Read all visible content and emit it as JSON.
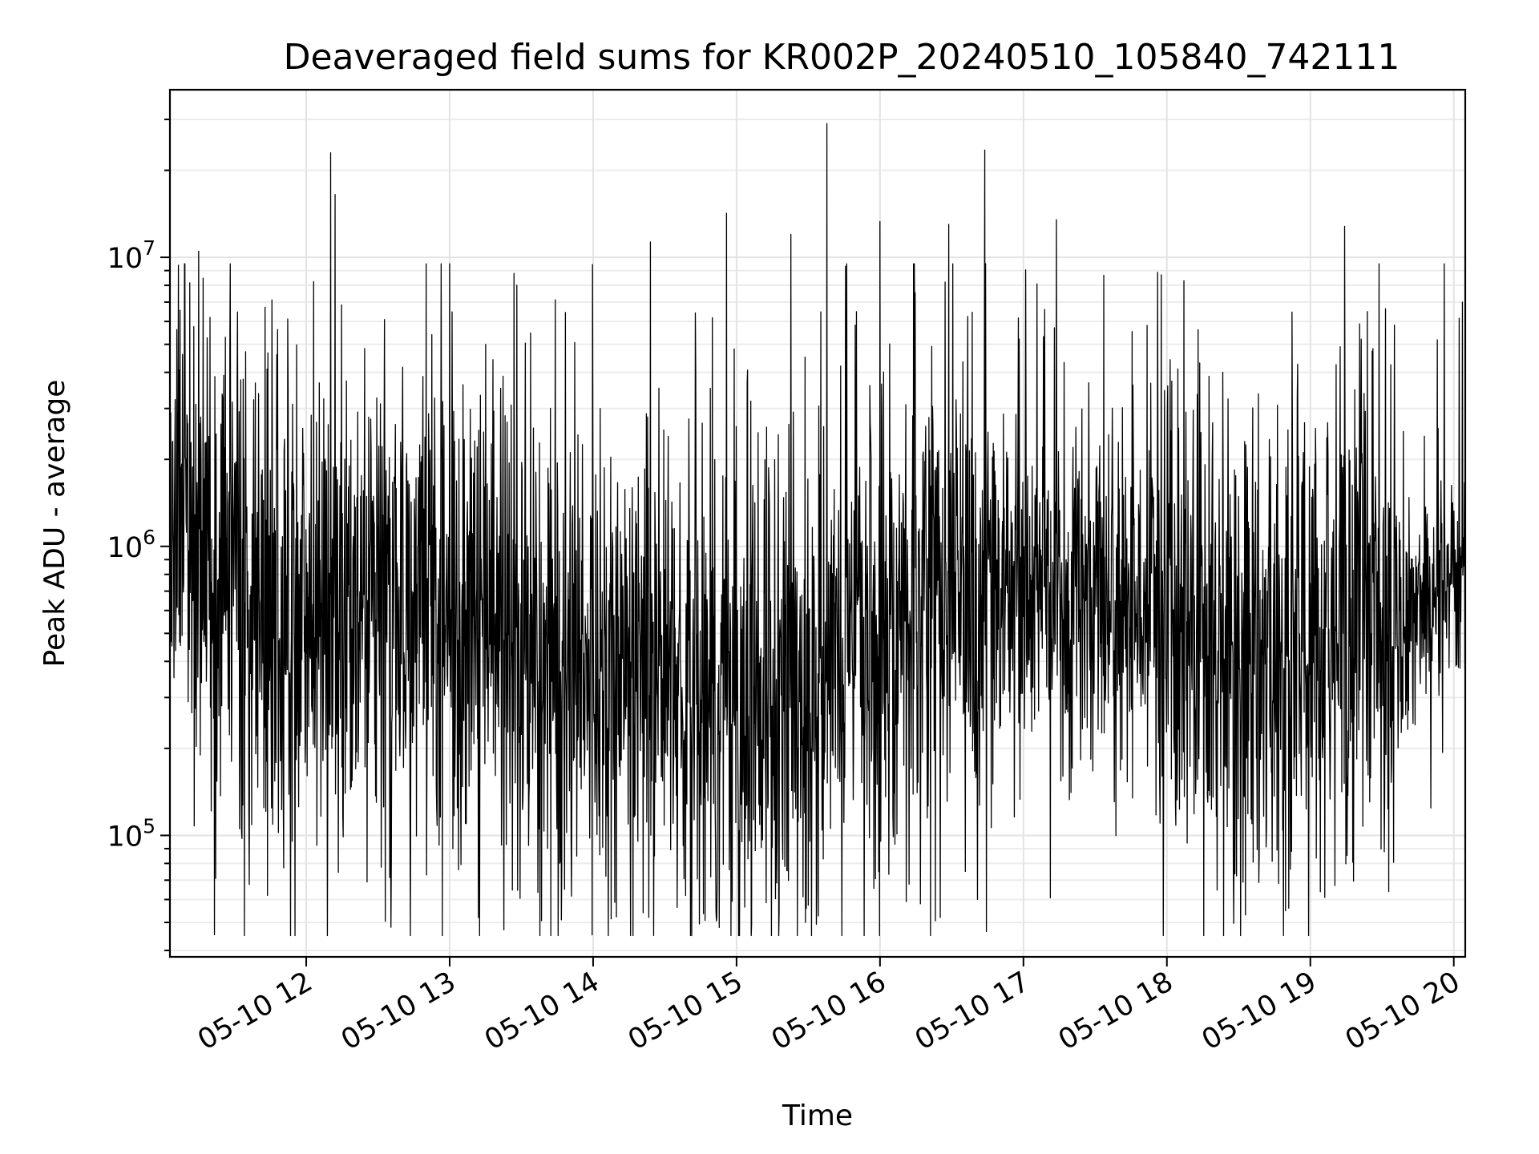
{
  "chart_data": {
    "type": "line",
    "title": "Deaveraged field sums for KR002P_20240510_105840_742111",
    "xlabel": "Time",
    "ylabel": "Peak ADU - average",
    "yscale": "log",
    "x_start": "2024-05-10 11:03",
    "x_end": "2024-05-10 20:05",
    "xlim_hours": [
      11.05,
      20.08
    ],
    "ylim": [
      38000,
      38000000
    ],
    "x_ticks": [
      {
        "hour": 12,
        "label": "05-10 12"
      },
      {
        "hour": 13,
        "label": "05-10 13"
      },
      {
        "hour": 14,
        "label": "05-10 14"
      },
      {
        "hour": 15,
        "label": "05-10 15"
      },
      {
        "hour": 16,
        "label": "05-10 16"
      },
      {
        "hour": 17,
        "label": "05-10 17"
      },
      {
        "hour": 18,
        "label": "05-10 18"
      },
      {
        "hour": 19,
        "label": "05-10 19"
      },
      {
        "hour": 20,
        "label": "05-10 20"
      }
    ],
    "y_ticks": [
      {
        "value": 100000,
        "base": "10",
        "exp": "5"
      },
      {
        "value": 1000000,
        "base": "10",
        "exp": "6"
      },
      {
        "value": 10000000,
        "base": "10",
        "exp": "7"
      }
    ],
    "grid": true,
    "line_color": "#000000",
    "series": [
      {
        "values_description_free": true,
        "typical_level_anchors": [
          {
            "hour": 11.05,
            "value": 1500000
          },
          {
            "hour": 11.5,
            "value": 700000
          },
          {
            "hour": 12.0,
            "value": 500000
          },
          {
            "hour": 12.9,
            "value": 700000
          },
          {
            "hour": 13.5,
            "value": 450000
          },
          {
            "hour": 14.5,
            "value": 330000
          },
          {
            "hour": 15.0,
            "value": 260000
          },
          {
            "hour": 16.0,
            "value": 550000
          },
          {
            "hour": 16.8,
            "value": 680000
          },
          {
            "hour": 17.6,
            "value": 700000
          },
          {
            "hour": 18.2,
            "value": 420000
          },
          {
            "hour": 18.8,
            "value": 380000
          },
          {
            "hour": 19.2,
            "value": 560000
          },
          {
            "hour": 19.7,
            "value": 600000
          },
          {
            "hour": 20.08,
            "value": 850000
          }
        ],
        "peaks": [
          {
            "hour": 11.25,
            "value": 10500000
          },
          {
            "hour": 12.17,
            "value": 23000000
          },
          {
            "hour": 12.2,
            "value": 16500000
          },
          {
            "hour": 13.25,
            "value": 5000000
          },
          {
            "hour": 13.45,
            "value": 8800000
          },
          {
            "hour": 14.4,
            "value": 11300000
          },
          {
            "hour": 14.93,
            "value": 14200000
          },
          {
            "hour": 15.38,
            "value": 12000000
          },
          {
            "hour": 15.63,
            "value": 29000000
          },
          {
            "hour": 16.0,
            "value": 13300000
          },
          {
            "hour": 16.48,
            "value": 13000000
          },
          {
            "hour": 16.73,
            "value": 23500000
          },
          {
            "hour": 17.23,
            "value": 13500000
          },
          {
            "hour": 17.96,
            "value": 8700000
          },
          {
            "hour": 18.12,
            "value": 8300000
          },
          {
            "hour": 19.24,
            "value": 12800000
          },
          {
            "hour": 20.06,
            "value": 7000000
          }
        ],
        "troughs": [
          {
            "hour": 11.37,
            "value": 71000
          },
          {
            "hour": 11.73,
            "value": 62000
          },
          {
            "hour": 13.2,
            "value": 52000
          },
          {
            "hour": 14.35,
            "value": 54000
          },
          {
            "hour": 14.88,
            "value": 48000
          },
          {
            "hour": 15.48,
            "value": 50000
          },
          {
            "hour": 16.42,
            "value": 52000
          },
          {
            "hour": 18.85,
            "value": 56000
          },
          {
            "hour": 19.1,
            "value": 61000
          }
        ]
      }
    ]
  }
}
